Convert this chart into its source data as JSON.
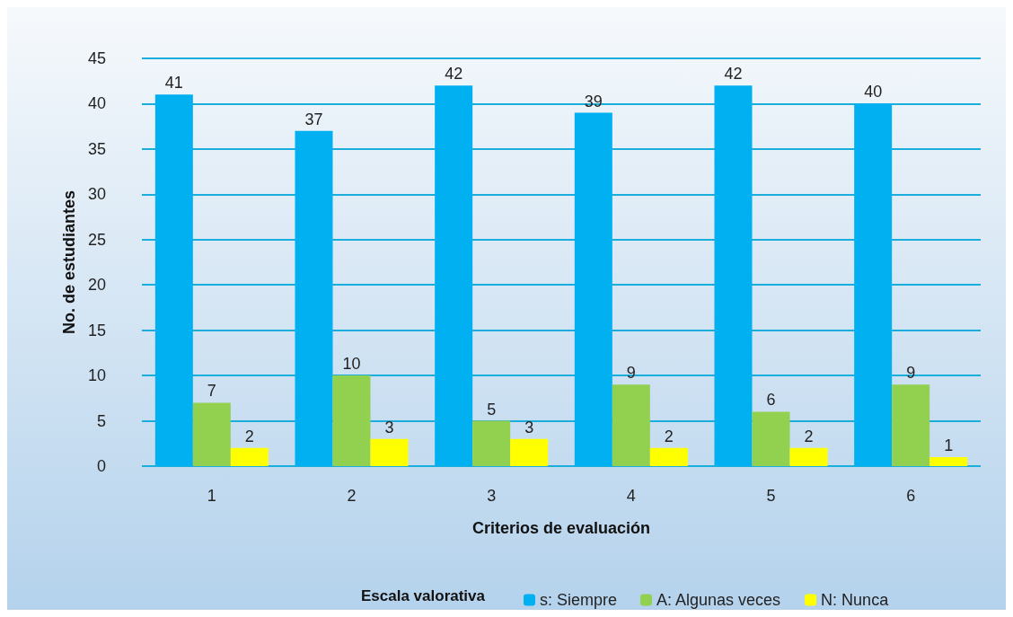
{
  "chart_data": {
    "type": "bar",
    "xlabel": "Criterios de evaluación",
    "ylabel": "No. de estudiantes",
    "legend_title": "Escala valorativa",
    "categories": [
      "1",
      "2",
      "3",
      "4",
      "5",
      "6"
    ],
    "series": [
      {
        "name": "s: Siempre",
        "color": "#00b0f0",
        "values": [
          41,
          37,
          42,
          39,
          42,
          40
        ]
      },
      {
        "name": "A: Algunas veces",
        "color": "#92d050",
        "values": [
          7,
          10,
          5,
          9,
          6,
          9
        ]
      },
      {
        "name": "N: Nunca",
        "color": "#ffff00",
        "values": [
          2,
          3,
          3,
          2,
          2,
          1
        ]
      }
    ],
    "ylim": [
      0,
      45
    ],
    "yticks": [
      0,
      5,
      10,
      15,
      20,
      25,
      30,
      35,
      40,
      45
    ],
    "grid": "y",
    "legend": "bottom",
    "data_labels": true
  }
}
